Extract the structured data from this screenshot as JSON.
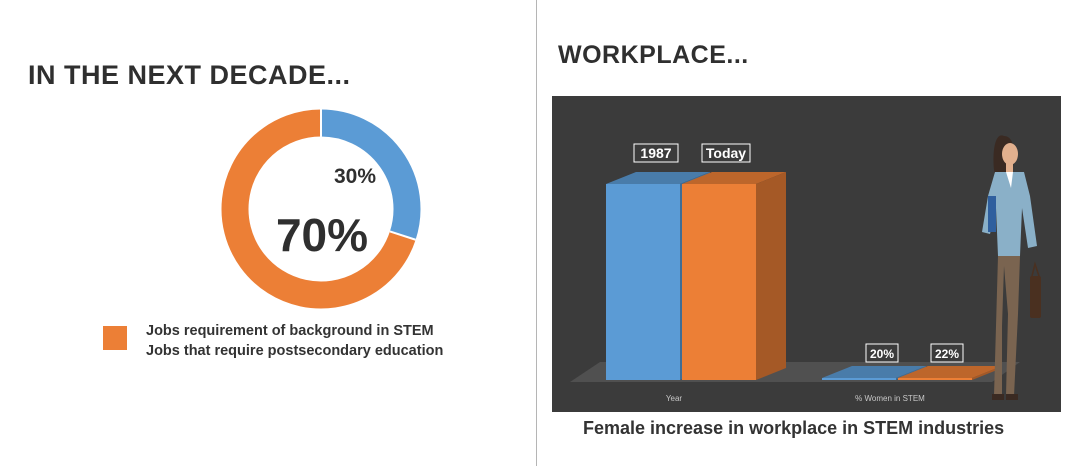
{
  "left_panel": {
    "heading": "IN THE NEXT DECADE...",
    "legend": [
      "Jobs requirement of background in STEM",
      "Jobs that require postsecondary education"
    ]
  },
  "right_panel": {
    "heading": "WORKPLACE...",
    "caption": "Female increase in workplace in STEM industries"
  },
  "colors": {
    "blue": "#5b9bd5",
    "orange": "#ec7f36",
    "panel_background": "#3b3b3b",
    "text_dark": "#2f2f2f"
  },
  "chart_data": [
    {
      "type": "pie",
      "donut": true,
      "categories": [
        "STEM background",
        "Postsecondary education"
      ],
      "values": [
        30,
        70
      ],
      "labels": [
        "30%",
        "70%"
      ],
      "colors": [
        "#5b9bd5",
        "#ec7f36"
      ]
    },
    {
      "type": "bar",
      "categories": [
        "Year",
        "% Women in STEM"
      ],
      "bar_labels": [
        [
          "1987",
          "Today"
        ],
        [
          "20%",
          "22%"
        ]
      ],
      "series": [
        {
          "name": "1987",
          "values": [
            null,
            20
          ],
          "color": "#5b9bd5"
        },
        {
          "name": "Today",
          "values": [
            null,
            22
          ],
          "color": "#ec7f36"
        }
      ]
    }
  ]
}
